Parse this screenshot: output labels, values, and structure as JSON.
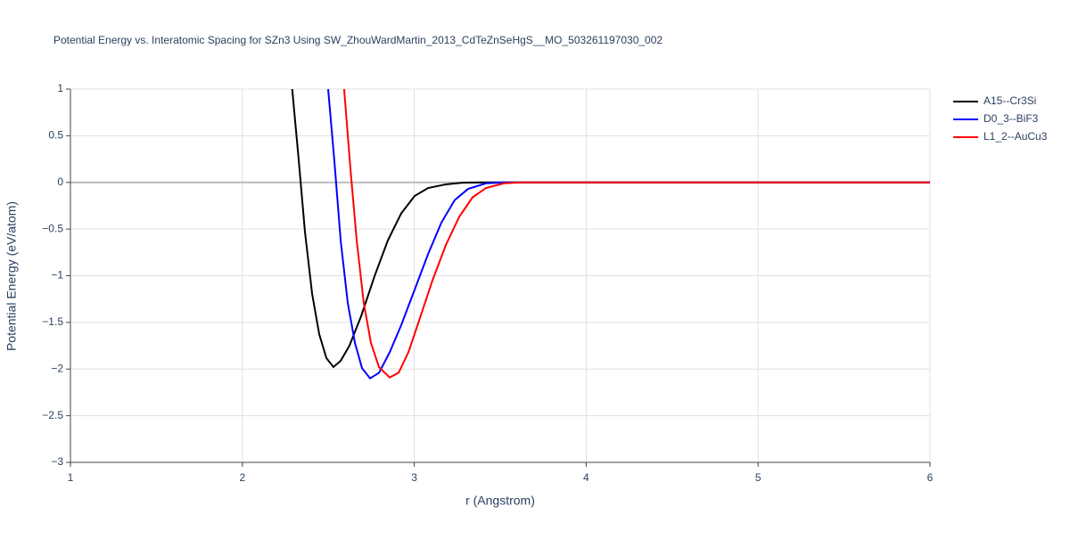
{
  "chart_data": {
    "type": "line",
    "title": "Potential Energy vs. Interatomic Spacing for SZn3 Using SW_ZhouWardMartin_2013_CdTeZnSeHgS__MO_503261197030_002",
    "xlabel": "r (Angstrom)",
    "ylabel": "Potential Energy (eV/atom)",
    "xlim": [
      1,
      6
    ],
    "ylim": [
      -3,
      1
    ],
    "xticks": [
      1,
      2,
      3,
      4,
      5,
      6
    ],
    "yticks": [
      {
        "value": -3,
        "label": "−3"
      },
      {
        "value": -2.5,
        "label": "−2.5"
      },
      {
        "value": -2,
        "label": "−2"
      },
      {
        "value": -1.5,
        "label": "−1.5"
      },
      {
        "value": -1,
        "label": "−1"
      },
      {
        "value": -0.5,
        "label": "−0.5"
      },
      0,
      0.5,
      1
    ],
    "grid": true,
    "legend": "right",
    "series": [
      {
        "name": "A15--Cr3Si",
        "color": "#000000",
        "x": [
          2.29,
          2.328,
          2.364,
          2.406,
          2.447,
          2.489,
          2.53,
          2.572,
          2.623,
          2.691,
          2.769,
          2.846,
          2.924,
          3.002,
          3.08,
          3.184,
          3.287,
          3.417,
          6.0
        ],
        "values": [
          1.0,
          0.237,
          -0.527,
          -1.196,
          -1.625,
          -1.883,
          -1.978,
          -1.911,
          -1.749,
          -1.433,
          -1.004,
          -0.623,
          -0.332,
          -0.146,
          -0.06,
          -0.021,
          -0.002,
          0,
          0
        ]
      },
      {
        "name": "D0_3--BiF3",
        "color": "#0000ff",
        "x": [
          2.499,
          2.535,
          2.572,
          2.613,
          2.655,
          2.696,
          2.743,
          2.795,
          2.857,
          2.924,
          3.002,
          3.08,
          3.158,
          3.235,
          3.313,
          3.417,
          3.521,
          6.0
        ],
        "values": [
          1.0,
          0.236,
          -0.623,
          -1.29,
          -1.72,
          -1.99,
          -2.1,
          -2.04,
          -1.82,
          -1.53,
          -1.15,
          -0.77,
          -0.43,
          -0.19,
          -0.07,
          -0.01,
          0,
          0
        ]
      },
      {
        "name": "L1_2--AuCu3",
        "color": "#ff0000",
        "x": [
          2.592,
          2.629,
          2.665,
          2.706,
          2.748,
          2.795,
          2.857,
          2.909,
          2.966,
          3.028,
          3.106,
          3.184,
          3.261,
          3.339,
          3.417,
          3.521,
          3.624,
          6.0
        ],
        "values": [
          1.0,
          0.14,
          -0.62,
          -1.29,
          -1.72,
          -1.98,
          -2.09,
          -2.04,
          -1.82,
          -1.48,
          -1.05,
          -0.67,
          -0.37,
          -0.16,
          -0.06,
          -0.01,
          0,
          0
        ]
      }
    ]
  }
}
